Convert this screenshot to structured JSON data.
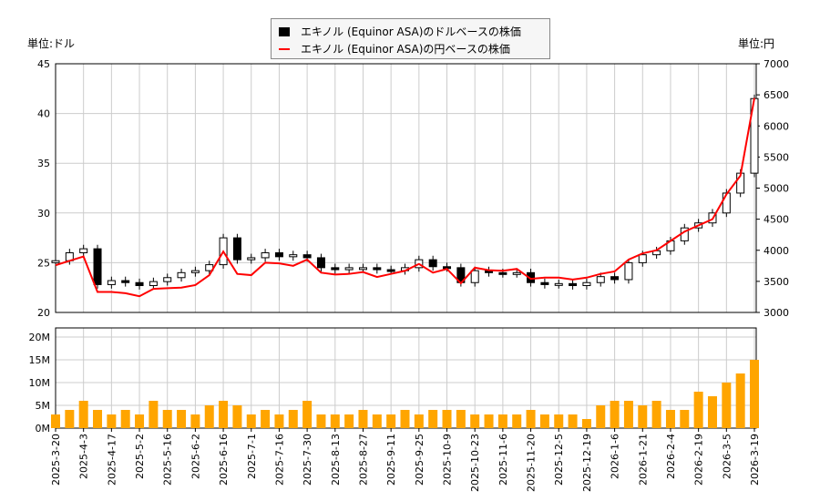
{
  "chart_data": {
    "type": "candlestick+line+bar",
    "left_unit": "単位:ドル",
    "right_unit": "単位:円",
    "legend": [
      "エキノル (Equinor ASA)のドルベースの株価",
      "エキノル (Equinor ASA)の円ベースの株価"
    ],
    "legend_placement": "top-center",
    "colors": {
      "candle": "#000000",
      "yen_line": "#ff0000",
      "volume": "#ffa500",
      "grid": "#cccccc"
    },
    "grid": true,
    "ylim_usd": [
      20,
      45
    ],
    "yticks_usd": [
      20,
      25,
      30,
      35,
      40,
      45
    ],
    "ylim_jpy": [
      3000,
      7000
    ],
    "yticks_jpy": [
      3000,
      3500,
      4000,
      4500,
      5000,
      5500,
      6000,
      6500,
      7000
    ],
    "ylim_volume": [
      0,
      22
    ],
    "yticks_volume": [
      "0M",
      "5M",
      "10M",
      "15M",
      "20M"
    ],
    "x_ticks": [
      "2025-3-20",
      "2025-4-3",
      "2025-4-17",
      "2025-5-2",
      "2025-5-16",
      "2025-6-2",
      "2025-6-16",
      "2025-7-1",
      "2025-7-16",
      "2025-7-30",
      "2025-8-13",
      "2025-8-27",
      "2025-9-11",
      "2025-9-25",
      "2025-10-9",
      "2025-10-23",
      "2025-11-6",
      "2025-11-20",
      "2025-12-5",
      "2025-12-19",
      "2026-1-6",
      "2026-1-21",
      "2026-2-4",
      "2026-2-19",
      "2026-3-5",
      "2026-3-19"
    ],
    "usd_close": [
      25.2,
      26.0,
      26.4,
      22.8,
      23.2,
      23.0,
      22.7,
      23.1,
      23.5,
      24.0,
      24.2,
      24.8,
      27.5,
      25.3,
      25.5,
      26.0,
      25.6,
      25.8,
      25.5,
      24.5,
      24.3,
      24.5,
      24.5,
      24.3,
      24.2,
      24.5,
      25.3,
      24.6,
      24.5,
      23.0,
      24.2,
      24.0,
      23.9,
      24.0,
      23.0,
      22.8,
      22.9,
      22.7,
      23.0,
      23.6,
      23.3,
      25.0,
      25.8,
      26.2,
      27.2,
      28.5,
      29.0,
      30.0,
      32.0,
      34.0,
      41.5
    ],
    "jpy_close": [
      3760,
      3830,
      3900,
      3330,
      3330,
      3310,
      3260,
      3380,
      3390,
      3400,
      3440,
      3600,
      3980,
      3620,
      3600,
      3800,
      3790,
      3750,
      3850,
      3640,
      3610,
      3620,
      3650,
      3570,
      3620,
      3670,
      3780,
      3640,
      3700,
      3470,
      3720,
      3680,
      3670,
      3700,
      3540,
      3560,
      3560,
      3530,
      3560,
      3620,
      3660,
      3850,
      3950,
      4000,
      4150,
      4300,
      4400,
      4500,
      4900,
      5200,
      6450
    ],
    "volume_m": [
      3,
      4,
      6,
      4,
      3,
      4,
      3,
      6,
      4,
      4,
      3,
      5,
      6,
      5,
      3,
      4,
      3,
      4,
      6,
      3,
      3,
      3,
      4,
      3,
      3,
      4,
      3,
      4,
      4,
      4,
      3,
      3,
      3,
      3,
      4,
      3,
      3,
      3,
      2,
      5,
      6,
      6,
      5,
      6,
      4,
      4,
      8,
      7,
      10,
      12,
      15
    ]
  }
}
